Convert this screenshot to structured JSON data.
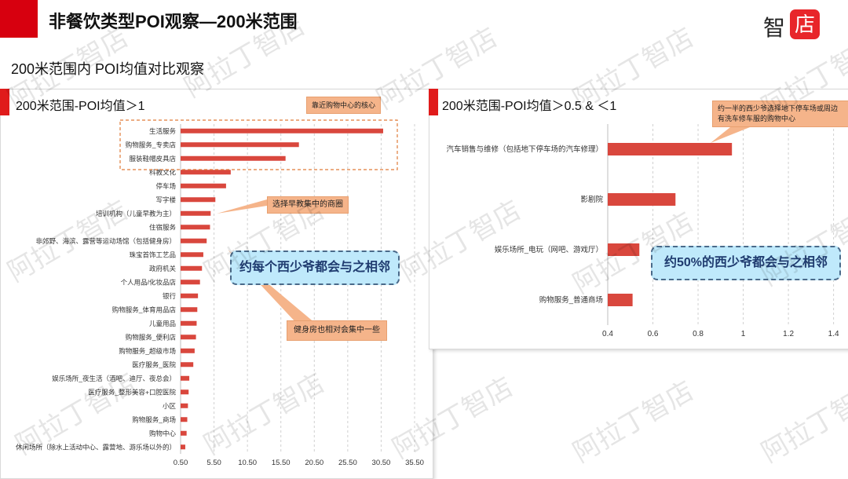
{
  "slide": {
    "title": "非餐饮类型POI观察—200米范围",
    "subtitle": "200米范围内 POI均值对比观察",
    "logo_text": "智",
    "logo_box_text": "店",
    "watermark": "阿拉丁智店"
  },
  "colors": {
    "accent": "#d7000f",
    "bar": "#d9473d",
    "callout": "#f5b48a",
    "highlight_blue": "#bfe9fb"
  },
  "left_panel": {
    "title": "200米范围-POI均值＞1",
    "callouts": {
      "top": "靠近购物中心的核心",
      "mid": "选择早教集中的商圈",
      "bottom": "健身房也相对会集中一些",
      "blue": "约每个西少爷都会与之相邻"
    }
  },
  "right_panel": {
    "title": "200米范围-POI均值＞0.5 & ＜1",
    "callouts": {
      "top": "约一半的西少爷选择地下停车场或周边有洗车修车服的购物中心",
      "blue": "约50%的西少爷都会与之相邻"
    }
  },
  "chart_data": [
    {
      "type": "bar",
      "orientation": "horizontal",
      "title": "200米范围-POI均值＞1",
      "categories": [
        "生活服务",
        "购物服务_专卖店",
        "服装鞋帽皮具店",
        "科教文化",
        "停车场",
        "写字楼",
        "培训机构（儿童早教为主）",
        "住宿服务",
        "非郊野、海滨、露营等运动场馆（包括健身房）",
        "珠宝首饰工艺品",
        "政府机关",
        "个人用品/化妆品店",
        "银行",
        "购物服务_体育用品店",
        "儿童用品",
        "购物服务_便利店",
        "购物服务_超级市场",
        "医疗服务_医院",
        "娱乐场所_夜生活（酒吧、迪厅、夜总会）",
        "医疗服务_整形美容+口腔医院",
        "小区",
        "购物服务_商场",
        "购物中心",
        "休闲场所（除水上活动中心、露营地、游乐场以外的）"
      ],
      "values": [
        30.8,
        18.2,
        16.2,
        8.0,
        7.3,
        5.7,
        5.0,
        4.9,
        4.4,
        3.9,
        3.7,
        3.4,
        3.1,
        3.0,
        2.9,
        2.8,
        2.6,
        2.4,
        1.8,
        1.7,
        1.6,
        1.5,
        1.4,
        1.2
      ],
      "xlim": [
        0.5,
        35.5
      ],
      "xticks": [
        "0.50",
        "5.50",
        "10.50",
        "15.50",
        "20.50",
        "25.50",
        "30.50",
        "35.50"
      ],
      "grid": "vertical dashed"
    },
    {
      "type": "bar",
      "orientation": "horizontal",
      "title": "200米范围-POI均值＞0.5 & ＜1",
      "categories": [
        "汽车销售与维修（包括地下停车场的汽车修理）",
        "影剧院",
        "娱乐场所_电玩（网吧、游戏厅）",
        "购物服务_普通商场"
      ],
      "values": [
        0.95,
        0.7,
        0.54,
        0.51
      ],
      "xlim": [
        0.4,
        1.45
      ],
      "xticks": [
        "0.4",
        "0.6",
        "0.8",
        "1",
        "1.2",
        "1.4"
      ],
      "grid": "vertical dashed"
    }
  ]
}
